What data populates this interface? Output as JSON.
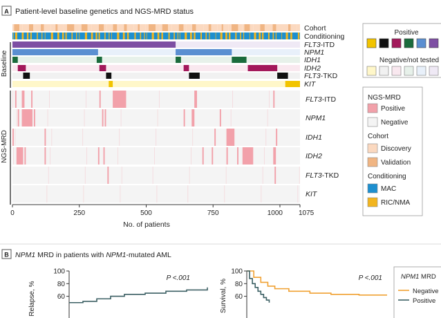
{
  "panel_a": {
    "badge": "A",
    "title": "Patient-level baseline genetics and NGS-MRD status",
    "group_baseline": "Baseline",
    "group_ngs": "NGS-MRD",
    "track_labels": [
      {
        "text": "Cohort",
        "italic": false
      },
      {
        "text": "Conditioning",
        "italic": false
      },
      {
        "text": "FLT3",
        "suffix": "-ITD",
        "italic": true
      },
      {
        "text": "NPM1",
        "suffix": "",
        "italic": true
      },
      {
        "text": "IDH1",
        "suffix": "",
        "italic": true
      },
      {
        "text": "IDH2",
        "suffix": "",
        "italic": true
      },
      {
        "text": "FLT3",
        "suffix": "-TKD",
        "italic": true
      },
      {
        "text": "KIT",
        "suffix": "",
        "italic": true
      }
    ],
    "mrd_labels": [
      {
        "text": "FLT3",
        "suffix": "-ITD"
      },
      {
        "text": "NPM1",
        "suffix": ""
      },
      {
        "text": "IDH1",
        "suffix": ""
      },
      {
        "text": "IDH2",
        "suffix": ""
      },
      {
        "text": "FLT3",
        "suffix": "-TKD"
      },
      {
        "text": "KIT",
        "suffix": ""
      }
    ],
    "legend_positive_title": "Positive",
    "legend_negative_title": "Negative/not tested",
    "positive_colors": [
      "#f2c400",
      "#111111",
      "#a3195b",
      "#1a6b3c",
      "#5b8fd1",
      "#7e4fa3"
    ],
    "negative_colors": [
      "#fff7c9",
      "#f1f1f1",
      "#f9e8ef",
      "#e7f1ea",
      "#e8f0fa",
      "#efe9f5"
    ],
    "legend2": {
      "ngs_title": "NGS-MRD",
      "positive": "Positive",
      "negative": "Negative",
      "cohort_title": "Cohort",
      "discovery": "Discovery",
      "validation": "Validation",
      "conditioning_title": "Conditioning",
      "mac": "MAC",
      "ric": "RIC/NMA"
    },
    "colors": {
      "discovery": "#fbd9c0",
      "validation": "#f0b583",
      "mac": "#1d8fcf",
      "ric": "#f2b51f",
      "mrd_positive": "#f2a1aa",
      "mrd_negative": "#f4f4f4"
    }
  },
  "panel_b": {
    "badge": "B",
    "title_gene": "NPM1",
    "title_mid": " MRD in patients with ",
    "title_gene2": "NPM1",
    "title_end": "-mutated AML",
    "left_ylabel": "Relapse, %",
    "right_ylabel": "Survival, %",
    "left_p": "P <.001",
    "right_p": "P <.001",
    "legend_title_gene": "NPM1",
    "legend_title_rest": " MRD",
    "legend_neg": "Negative",
    "legend_pos": "Positive",
    "color_neg": "#f0a030",
    "color_pos": "#3b5f63"
  },
  "chart_data": [
    {
      "type": "heatmap",
      "title": "Patient-level baseline genetics and NGS-MRD status",
      "xlabel": "No. of patients",
      "xlim": [
        0,
        1075
      ],
      "xticks": [
        0,
        250,
        500,
        750,
        1000,
        1075
      ],
      "baseline_rows": [
        "Cohort",
        "Conditioning",
        "FLT3-ITD",
        "NPM1",
        "IDH1",
        "IDH2",
        "FLT3-TKD",
        "KIT"
      ],
      "baseline_segments": {
        "FLT3-ITD": [
          [
            0,
            610
          ]
        ],
        "NPM1": [
          [
            0,
            320
          ],
          [
            610,
            820
          ]
        ],
        "IDH1": [
          [
            0,
            20
          ],
          [
            315,
            335
          ],
          [
            610,
            630
          ],
          [
            820,
            875
          ]
        ],
        "IDH2": [
          [
            20,
            50
          ],
          [
            325,
            350
          ],
          [
            640,
            660
          ],
          [
            880,
            990
          ]
        ],
        "FLT3-TKD": [
          [
            40,
            65
          ],
          [
            350,
            370
          ],
          [
            660,
            700
          ],
          [
            990,
            1030
          ]
        ],
        "KIT": [
          [
            360,
            375
          ],
          [
            1020,
            1075
          ]
        ]
      },
      "mrd_rows": [
        "FLT3-ITD",
        "NPM1",
        "IDH1",
        "IDH2",
        "FLT3-TKD",
        "KIT"
      ],
      "mrd_positive_segments": {
        "FLT3-ITD": [
          [
            10,
            15
          ],
          [
            35,
            45
          ],
          [
            70,
            75
          ],
          [
            325,
            330
          ],
          [
            375,
            425
          ],
          [
            680,
            690
          ],
          [
            975,
            980
          ]
        ],
        "NPM1": [
          [
            20,
            25
          ],
          [
            35,
            75
          ],
          [
            80,
            85
          ],
          [
            335,
            340
          ],
          [
            345,
            350
          ],
          [
            640,
            645
          ],
          [
            670,
            680
          ],
          [
            775,
            780
          ]
        ],
        "IDH1": [
          [
            0,
            5
          ],
          [
            120,
            125
          ],
          [
            755,
            760
          ],
          [
            800,
            830
          ],
          [
            985,
            990
          ]
        ],
        "IDH2": [
          [
            15,
            40
          ],
          [
            45,
            50
          ],
          [
            120,
            125
          ],
          [
            320,
            325
          ],
          [
            340,
            345
          ],
          [
            710,
            715
          ],
          [
            745,
            750
          ],
          [
            800,
            805
          ],
          [
            840,
            845
          ],
          [
            860,
            900
          ],
          [
            975,
            985
          ]
        ],
        "FLT3-TKD": [
          [
            355,
            360
          ],
          [
            980,
            985
          ]
        ],
        "KIT": []
      }
    },
    {
      "type": "line",
      "title": "",
      "xlabel": "",
      "ylabel": "Relapse, %",
      "ylim": [
        0,
        100
      ],
      "yticks": [
        60,
        80,
        100
      ],
      "series": [
        {
          "name": "Positive",
          "x": [
            0,
            0.1,
            0.2,
            0.3,
            0.4,
            0.55,
            0.7,
            0.85,
            1.0
          ],
          "values": [
            50,
            52,
            56,
            60,
            63,
            65,
            68,
            70,
            74
          ]
        }
      ]
    },
    {
      "type": "line",
      "title": "",
      "xlabel": "",
      "ylabel": "Survival, %",
      "ylim": [
        0,
        100
      ],
      "yticks": [
        60,
        80,
        100
      ],
      "series": [
        {
          "name": "Negative",
          "x": [
            0,
            0.05,
            0.1,
            0.15,
            0.2,
            0.3,
            0.45,
            0.6,
            0.8,
            1.0
          ],
          "values": [
            100,
            90,
            82,
            76,
            72,
            68,
            65,
            63,
            62,
            62
          ]
        },
        {
          "name": "Positive",
          "x": [
            0,
            0.02,
            0.04,
            0.06,
            0.08,
            0.1,
            0.12,
            0.14,
            0.16
          ],
          "values": [
            100,
            88,
            80,
            74,
            68,
            63,
            58,
            54,
            50
          ]
        }
      ]
    }
  ]
}
